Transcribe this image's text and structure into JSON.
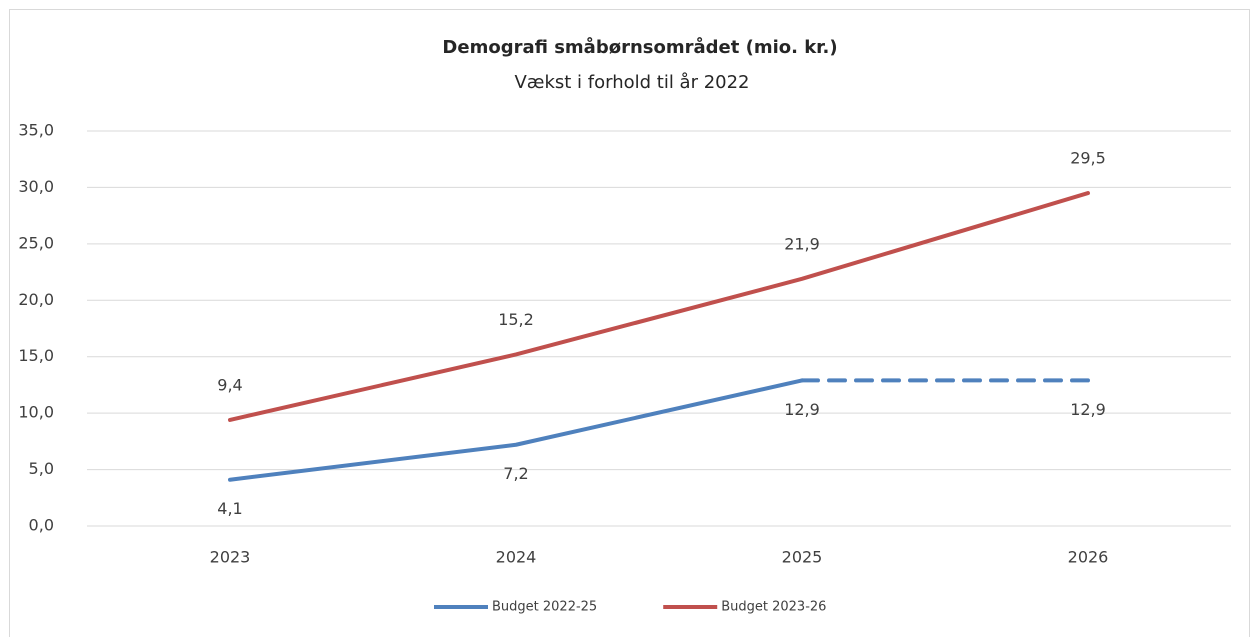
{
  "chart_data": {
    "type": "line",
    "title": "Demografi småbørnsområdet (mio. kr.)",
    "subtitle": "Vækst i forhold til år 2022",
    "categories": [
      "2023",
      "2024",
      "2025",
      "2026"
    ],
    "series": [
      {
        "name": "Budget 2022-25",
        "color": "#4f81bd",
        "values": [
          4.1,
          7.2,
          12.9,
          12.9
        ],
        "value_labels": [
          "4,1",
          "7,2",
          "12,9",
          "12,9"
        ],
        "label_position": "below",
        "dashed_segments": [
          2
        ]
      },
      {
        "name": "Budget 2023-26",
        "color": "#c0504d",
        "values": [
          9.4,
          15.2,
          21.9,
          29.5
        ],
        "value_labels": [
          "9,4",
          "15,2",
          "21,9",
          "29,5"
        ],
        "label_position": "above",
        "dashed_segments": []
      }
    ],
    "ylim": [
      0,
      35
    ],
    "yticks": [
      {
        "value": 0,
        "label": "0,0"
      },
      {
        "value": 5,
        "label": "5,0"
      },
      {
        "value": 10,
        "label": "10,0"
      },
      {
        "value": 15,
        "label": "15,0"
      },
      {
        "value": 20,
        "label": "20,0"
      },
      {
        "value": 25,
        "label": "25,0"
      },
      {
        "value": 30,
        "label": "30,0"
      },
      {
        "value": 35,
        "label": "35,0"
      }
    ],
    "grid": true,
    "legend": "bottom"
  }
}
